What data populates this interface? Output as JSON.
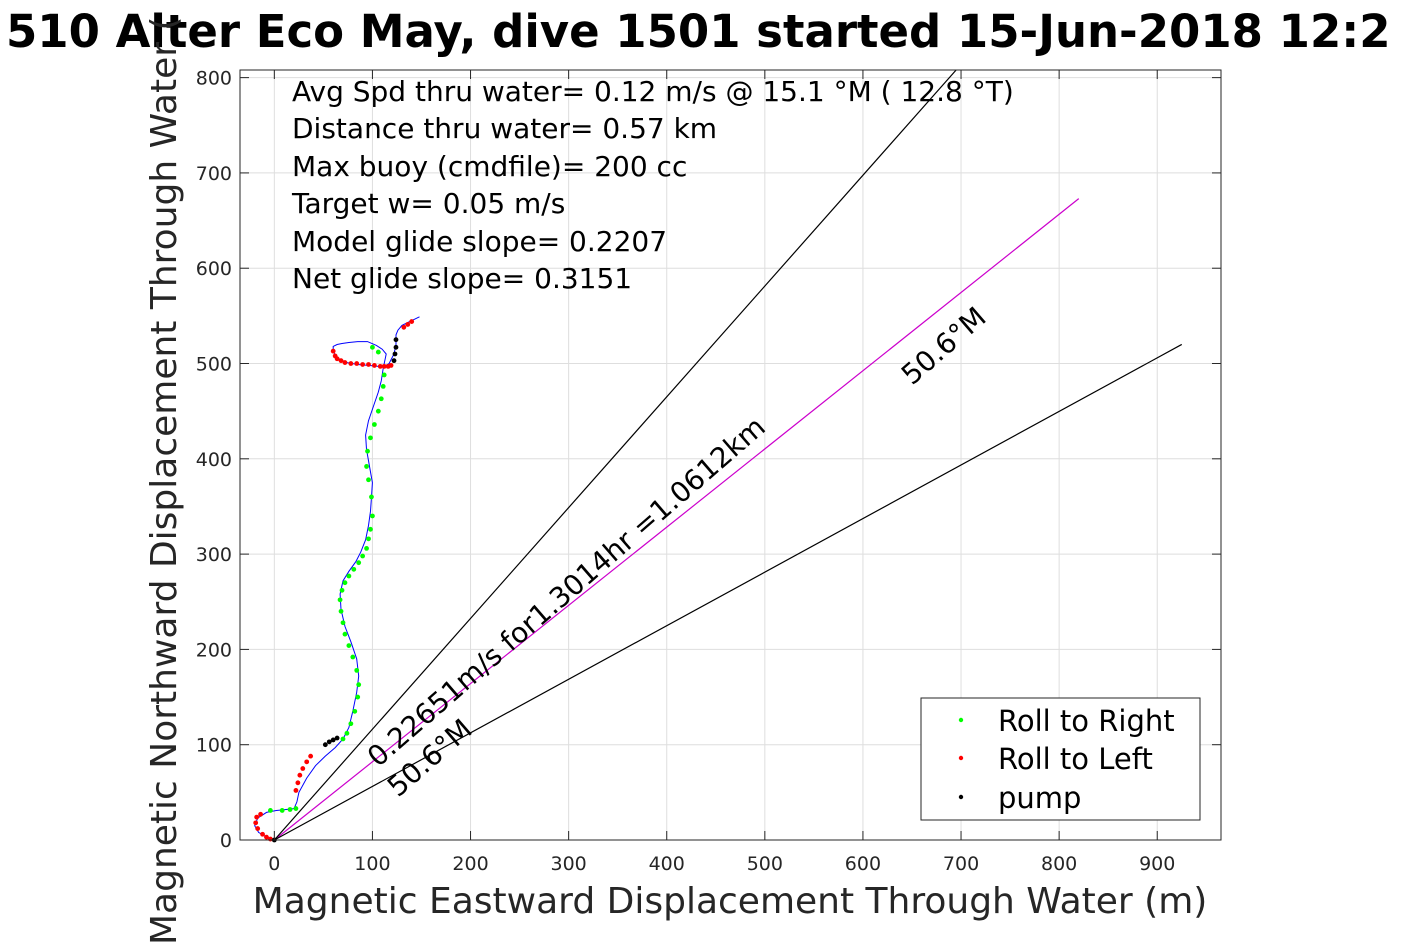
{
  "chart_data": {
    "type": "line",
    "title": "510 Alter Eco May, dive 1501 started 15-Jun-2018 12:2",
    "xlabel": "Magnetic Eastward Displacement Through Water (m)",
    "ylabel": "Magnetic Northward Displacement Through Water (",
    "xlim": [
      -35,
      965
    ],
    "ylim": [
      0,
      808
    ],
    "xticks": [
      0,
      100,
      200,
      300,
      400,
      500,
      600,
      700,
      800,
      900
    ],
    "yticks": [
      0,
      100,
      200,
      300,
      400,
      500,
      600,
      700,
      800
    ],
    "grid": true,
    "annotations_text": [
      "Avg Spd thru water=  0.12 m/s @  15.1 °M ( 12.8 °T)",
      "Distance thru water=  0.57 km",
      "Max buoy (cmdfile)= 200 cc",
      "Target w= 0.05 m/s",
      "Model glide slope= 0.2207",
      "Net glide slope= 0.3151"
    ],
    "rotated_labels": {
      "speed_line": "0.22651m/s for1.3014hr =1.0612km",
      "heading_upper": "50.6°M",
      "heading_lower": "50.6°M"
    },
    "reference_lines": [
      {
        "name": "heading",
        "color": "#cc00cc",
        "x": [
          0,
          820
        ],
        "y": [
          0,
          673
        ]
      },
      {
        "name": "upper-bound",
        "color": "#000000",
        "x": [
          0,
          695
        ],
        "y": [
          0,
          808
        ]
      },
      {
        "name": "lower-bound",
        "color": "#000000",
        "x": [
          0,
          925
        ],
        "y": [
          0,
          520
        ]
      }
    ],
    "track": {
      "color": "#0000ff",
      "x": [
        0,
        -8,
        -16,
        -20,
        -17,
        -8,
        2,
        12,
        20,
        23,
        25,
        33,
        42,
        52,
        62,
        70,
        76,
        80,
        84,
        86,
        84,
        78,
        72,
        68,
        67,
        70,
        76,
        83,
        88,
        93,
        96,
        98,
        99,
        100,
        97,
        94,
        93,
        96,
        101,
        106,
        109,
        111,
        113,
        114,
        110,
        104,
        95,
        85,
        76,
        69,
        64,
        60,
        60,
        66,
        74,
        85,
        96,
        106,
        112,
        117,
        122,
        124,
        124,
        126,
        130,
        136,
        142,
        148
      ],
      "y": [
        0,
        3,
        8,
        15,
        23,
        29,
        31,
        32,
        33,
        40,
        50,
        65,
        78,
        88,
        97,
        106,
        118,
        135,
        155,
        172,
        190,
        208,
        224,
        242,
        258,
        272,
        282,
        292,
        302,
        315,
        330,
        345,
        360,
        375,
        392,
        410,
        425,
        440,
        455,
        470,
        482,
        495,
        505,
        510,
        515,
        519,
        523,
        523,
        522,
        521,
        520,
        518,
        512,
        505,
        501,
        499,
        498,
        497,
        497,
        500,
        510,
        520,
        530,
        535,
        540,
        543,
        546,
        549
      ]
    },
    "legend": {
      "placement": "bottom-right",
      "entries": [
        {
          "label": "Roll to Right",
          "color": "#00ff00"
        },
        {
          "label": "Roll to Left",
          "color": "#ff0000"
        },
        {
          "label": "pump",
          "color": "#000000"
        }
      ]
    },
    "markers": {
      "roll_right": {
        "color": "#00ff00",
        "x": [
          -4,
          8,
          16,
          22,
          70,
          74,
          78,
          82,
          85,
          86,
          84,
          80,
          76,
          72,
          70,
          68,
          67,
          69,
          72,
          76,
          81,
          86,
          90,
          94,
          96,
          98,
          100,
          99,
          96,
          94,
          95,
          98,
          102,
          106,
          109,
          111,
          112,
          106,
          100
        ],
        "y": [
          31,
          31,
          32,
          33,
          106,
          112,
          122,
          135,
          150,
          163,
          178,
          192,
          204,
          216,
          228,
          240,
          252,
          262,
          270,
          277,
          284,
          291,
          298,
          306,
          316,
          326,
          340,
          360,
          378,
          392,
          408,
          422,
          436,
          450,
          463,
          476,
          488,
          512,
          517
        ]
      },
      "roll_left": {
        "color": "#ff0000",
        "x": [
          -12,
          -17,
          -19,
          -18,
          -14,
          -8,
          -4,
          22,
          24,
          26,
          29,
          33,
          37,
          60,
          62,
          64,
          68,
          72,
          78,
          84,
          90,
          96,
          102,
          108,
          112,
          116,
          119,
          132,
          136,
          140
        ],
        "y": [
          6,
          12,
          18,
          24,
          27,
          3,
          1,
          52,
          60,
          68,
          75,
          82,
          88,
          513,
          508,
          505,
          503,
          501,
          500,
          500,
          499,
          499,
          498,
          497,
          497,
          497,
          498,
          538,
          541,
          544
        ]
      },
      "pump": {
        "color": "#000000",
        "x": [
          0,
          52,
          56,
          60,
          64,
          122,
          123,
          124,
          124
        ],
        "y": [
          0,
          100,
          103,
          105,
          107,
          503,
          510,
          517,
          525
        ]
      }
    }
  }
}
